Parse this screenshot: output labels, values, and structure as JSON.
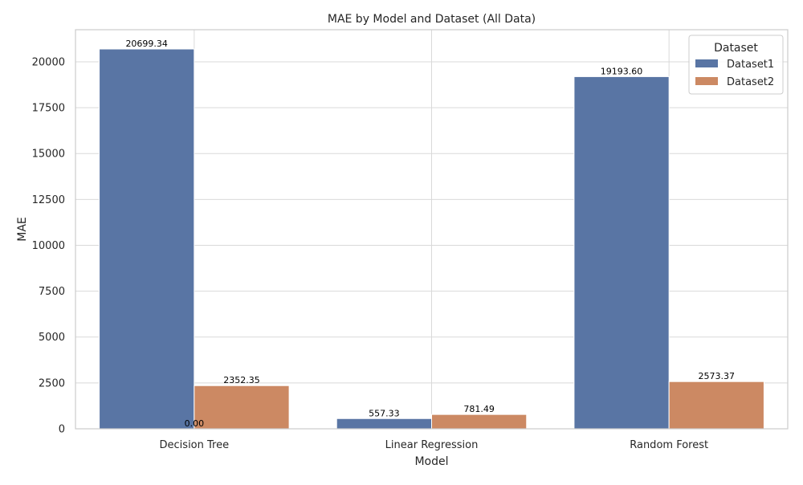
{
  "chart_data": {
    "type": "bar",
    "title": "MAE by Model and Dataset (All Data)",
    "xlabel": "Model",
    "ylabel": "MAE",
    "ylim": [
      0,
      21750
    ],
    "yticks": [
      0,
      2500,
      5000,
      7500,
      10000,
      12500,
      15000,
      17500,
      20000
    ],
    "categories": [
      "Decision Tree",
      "Linear Regression",
      "Random Forest"
    ],
    "series": [
      {
        "name": "Dataset1",
        "color": "#5975a4",
        "values": [
          20699.34,
          557.33,
          19193.6
        ],
        "labels": [
          "20699.34",
          "557.33",
          "19193.60"
        ]
      },
      {
        "name": "Dataset2",
        "color": "#cc8963",
        "values": [
          2352.35,
          781.49,
          2573.37
        ],
        "labels": [
          "2352.35",
          "781.49",
          "2573.37"
        ]
      }
    ],
    "extra_annotations": [
      {
        "text": "0.00",
        "category": "Decision Tree",
        "value": 0
      }
    ],
    "legend": {
      "title": "Dataset",
      "position": "top-right"
    },
    "grid": true
  }
}
